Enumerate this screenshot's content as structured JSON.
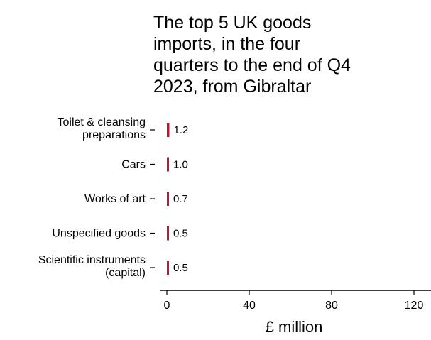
{
  "chart_data": {
    "type": "bar",
    "orientation": "horizontal",
    "title_lines": [
      "The top 5 UK goods",
      "imports, in the four",
      "quarters to the end of Q4",
      "2023, from Gibraltar"
    ],
    "categories": [
      [
        "Toilet & cleansing",
        "preparations"
      ],
      [
        "Cars"
      ],
      [
        "Works of art"
      ],
      [
        "Unspecified goods"
      ],
      [
        "Scientific instruments",
        "(capital)"
      ]
    ],
    "values": [
      1.2,
      1.0,
      0.7,
      0.5,
      0.5
    ],
    "value_labels": [
      "1.2",
      "1.0",
      "0.7",
      "0.5",
      "0.5"
    ],
    "xlabel": "£ million",
    "xlim": [
      0,
      120
    ],
    "xticks": [
      0,
      40,
      80,
      120
    ],
    "xtick_labels": [
      "0",
      "40",
      "80",
      "120"
    ],
    "grid": false,
    "bar_color": "#c8102e",
    "text_color": "#000000",
    "axis_color": "#000000"
  }
}
